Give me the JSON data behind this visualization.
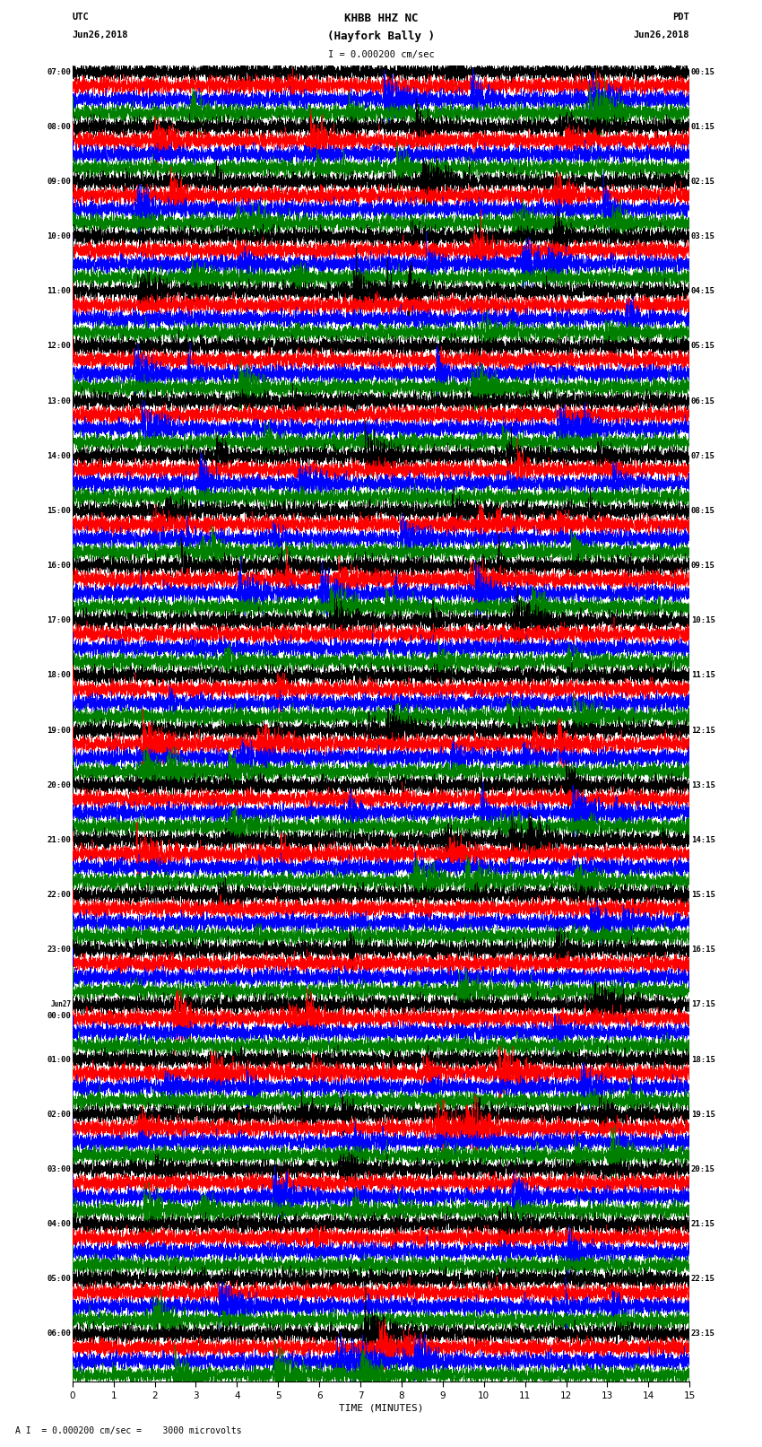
{
  "title_line1": "KHBB HHZ NC",
  "title_line2": "(Hayfork Bally )",
  "scale_bar": "I = 0.000200 cm/sec",
  "left_label_top": "UTC",
  "left_label_date": "Jun26,2018",
  "right_label_top": "PDT",
  "right_label_date": "Jun26,2018",
  "bottom_label": "TIME (MINUTES)",
  "footnote": "A I  = 0.000200 cm/sec =    3000 microvolts",
  "utc_times": [
    "07:00",
    "08:00",
    "09:00",
    "10:00",
    "11:00",
    "12:00",
    "13:00",
    "14:00",
    "15:00",
    "16:00",
    "17:00",
    "18:00",
    "19:00",
    "20:00",
    "21:00",
    "22:00",
    "23:00",
    "Jun27\n00:00",
    "01:00",
    "02:00",
    "03:00",
    "04:00",
    "05:00",
    "06:00"
  ],
  "pdt_times": [
    "00:15",
    "01:15",
    "02:15",
    "03:15",
    "04:15",
    "05:15",
    "06:15",
    "07:15",
    "08:15",
    "09:15",
    "10:15",
    "11:15",
    "12:15",
    "13:15",
    "14:15",
    "15:15",
    "16:15",
    "17:15",
    "18:15",
    "19:15",
    "20:15",
    "21:15",
    "22:15",
    "23:15"
  ],
  "n_rows": 24,
  "n_traces_per_row": 4,
  "trace_colors": [
    "black",
    "red",
    "blue",
    "green"
  ],
  "minutes": 15,
  "samples_per_minute": 400,
  "bg_color": "white",
  "figure_width": 8.5,
  "figure_height": 16.13,
  "dpi": 100,
  "trace_amplitude": 0.28,
  "linewidth": 0.4
}
